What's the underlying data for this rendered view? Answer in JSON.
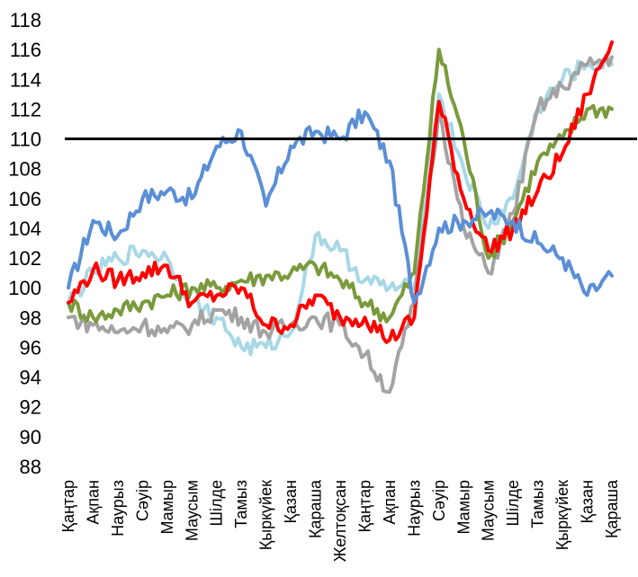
{
  "chart_data": {
    "type": "line",
    "title": "",
    "xlabel": "",
    "ylabel": "",
    "ylim": [
      88,
      118
    ],
    "yticks": [
      88,
      90,
      92,
      94,
      96,
      98,
      100,
      102,
      104,
      106,
      108,
      110,
      112,
      114,
      116,
      118
    ],
    "categories": [
      "Қаңтар",
      "Ақпан",
      "Наурыз",
      "Сәуір",
      "Мамыр",
      "Маусым",
      "Шілде",
      "Тамыз",
      "Қыркүйек",
      "Қазан",
      "Қараша",
      "Желтоқсан",
      "Қаңтар",
      "Ақпан",
      "Наурыз",
      "Сәуір",
      "Мамыр",
      "Маусым",
      "Шілде",
      "Тамыз",
      "Қыркүйек",
      "Қазан",
      "Қараша"
    ],
    "reference_line": {
      "value": 110,
      "color": "#000000"
    },
    "grid": false,
    "legend": "none",
    "series": [
      {
        "color": "#5b8fd6",
        "values": [
          100,
          104.5,
          103.5,
          106,
          106.5,
          106,
          109.5,
          110.5,
          105.5,
          109.5,
          110.5,
          110,
          111.8,
          108.5,
          99,
          104,
          104.5,
          105,
          104.5,
          103,
          102,
          99.5,
          100.8
        ]
      },
      {
        "color": "#7a9a3c",
        "values": [
          99,
          98,
          98.5,
          99,
          99.5,
          100,
          100,
          100.5,
          100.8,
          101,
          101.5,
          100.5,
          99,
          98,
          101,
          116,
          110,
          102,
          104.5,
          108.5,
          110,
          112,
          112
        ]
      },
      {
        "color": "#ff0000",
        "values": [
          99,
          101.2,
          100.5,
          101,
          101.5,
          99,
          99.5,
          100,
          97.5,
          97.5,
          99.5,
          98,
          98,
          96.5,
          98,
          112.5,
          106,
          102.5,
          104,
          106.5,
          109,
          113,
          116.5
        ]
      },
      {
        "color": "#a3a3a3",
        "values": [
          98,
          97.5,
          97,
          97.5,
          97,
          97.5,
          98.5,
          98,
          97,
          97.5,
          98,
          97.5,
          95.5,
          93,
          99,
          112,
          104,
          101,
          105,
          112,
          113.5,
          115,
          115.5
        ]
      },
      {
        "color": "#a8d8e6",
        "values": [
          99,
          101,
          102,
          102.5,
          102,
          99,
          98,
          96,
          96,
          97,
          103.5,
          102.5,
          100.5,
          100,
          100,
          113,
          108,
          104,
          106,
          112,
          114,
          115,
          115
        ]
      }
    ]
  }
}
